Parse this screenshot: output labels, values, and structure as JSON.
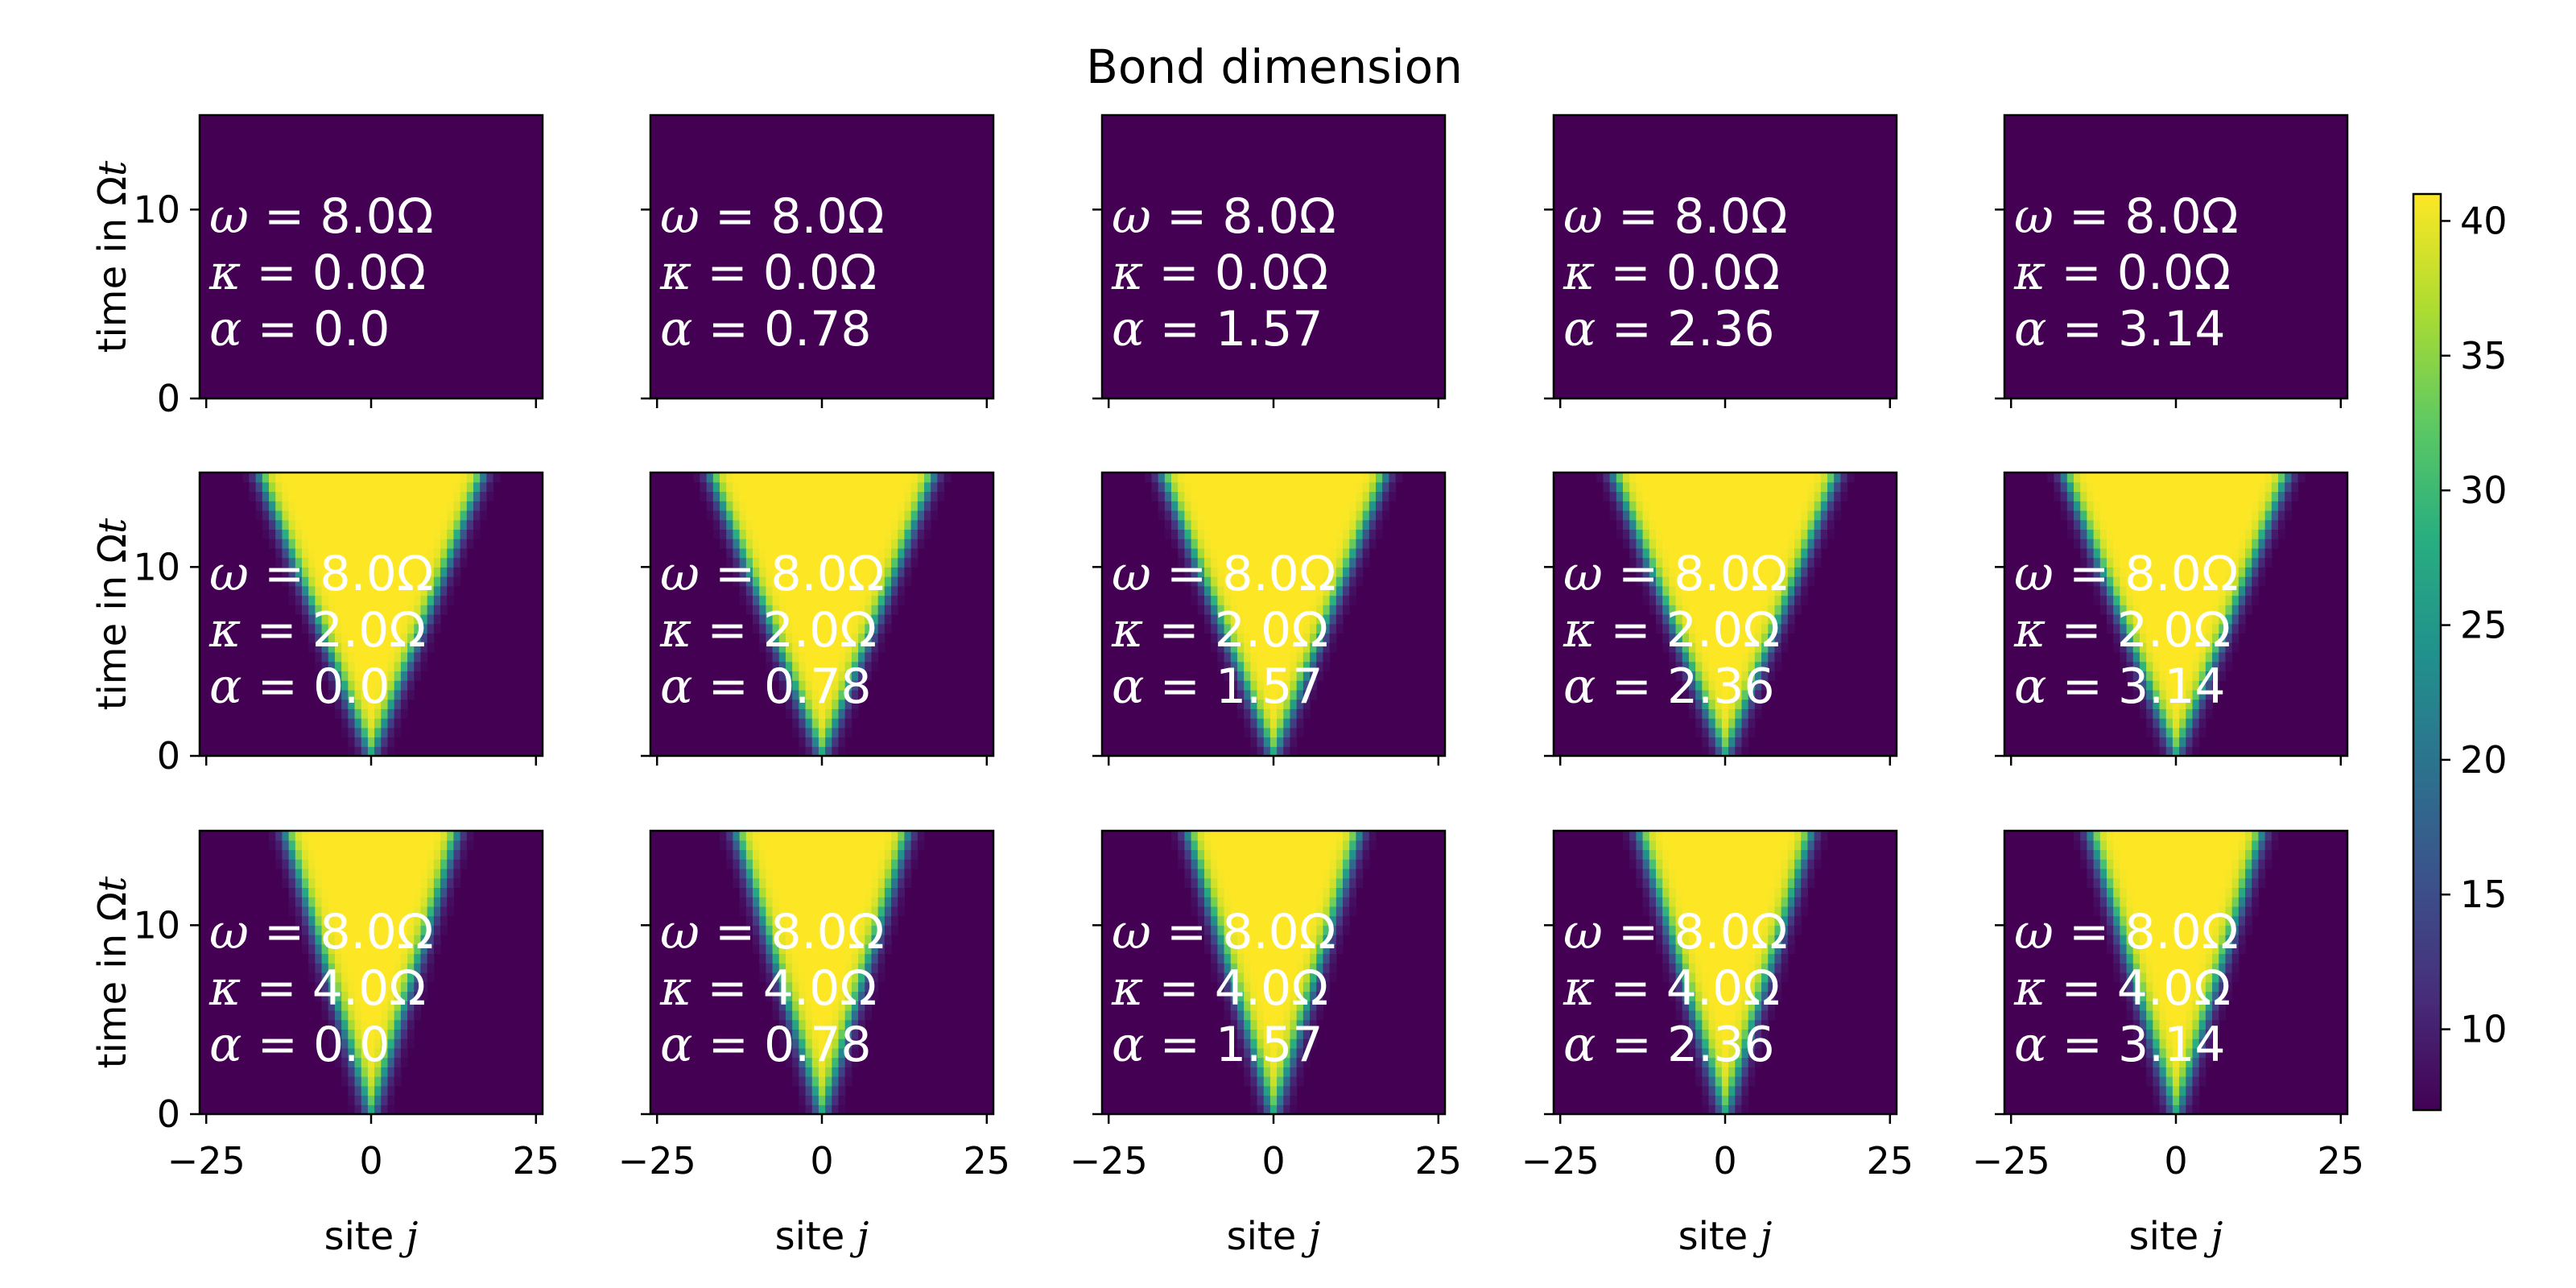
{
  "chart_data": {
    "type": "heatmap",
    "title": "Bond dimension",
    "xlabel": "site j",
    "xlabel_parts": {
      "text": "site ",
      "symbol": "j"
    },
    "ylabel": "time in Ωt",
    "ylabel_parts": {
      "text": "time in Ω",
      "symbol": "t"
    },
    "xlim": [
      -26,
      26
    ],
    "ylim": [
      0,
      15
    ],
    "xticks": [
      -25,
      0,
      25
    ],
    "xtick_labels": [
      "−25",
      "0",
      "25"
    ],
    "yticks": [
      0,
      10
    ],
    "ytick_labels": [
      "0",
      "10"
    ],
    "colorbar": {
      "range": [
        7,
        41
      ],
      "ticks": [
        10,
        15,
        20,
        25,
        30,
        35,
        40
      ],
      "tick_labels": [
        "10",
        "15",
        "20",
        "25",
        "30",
        "35",
        "40"
      ],
      "colormap": "viridis",
      "colors": [
        "#440154",
        "#472d7b",
        "#3b528b",
        "#2c728e",
        "#21918c",
        "#28ae80",
        "#5ec962",
        "#addc30",
        "#fde725"
      ]
    },
    "grid": false,
    "rows": [
      {
        "omega": "8.0",
        "kappa": "0.0",
        "cone_halfwidth_at_top": 0,
        "saturated": false
      },
      {
        "omega": "8.0",
        "kappa": "2.0",
        "cone_halfwidth_at_top": 17,
        "saturated": true
      },
      {
        "omega": "8.0",
        "kappa": "4.0",
        "cone_halfwidth_at_top": 13,
        "saturated": true
      }
    ],
    "columns": [
      {
        "alpha": "0.0"
      },
      {
        "alpha": "0.78"
      },
      {
        "alpha": "1.57"
      },
      {
        "alpha": "2.36"
      },
      {
        "alpha": "3.14"
      }
    ],
    "annotation_labels": {
      "omega": "ω = ",
      "kappa": "κ = ",
      "alpha": "α = ",
      "unit": "Ω"
    },
    "values_description_min": 7,
    "values_description_max": 41
  }
}
